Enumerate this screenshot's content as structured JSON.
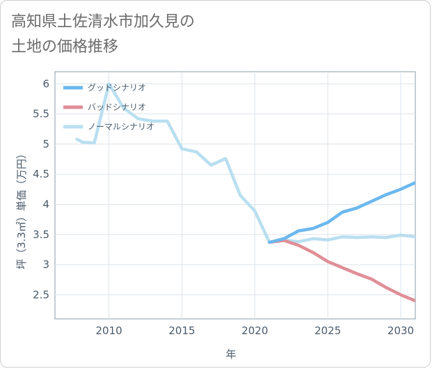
{
  "title": "高知県土佐清水市加久見の\n土地の価格推移",
  "chart_data": {
    "type": "line",
    "xlabel": "年",
    "ylabel": "坪（3.3㎡）単価（万円）",
    "xlim": [
      2006.3,
      2031
    ],
    "ylim": [
      2.1,
      6.2
    ],
    "xticks": [
      2010,
      2015,
      2020,
      2025,
      2030
    ],
    "yticks": [
      2.5,
      3,
      3.5,
      4,
      4.5,
      5,
      5.5,
      6
    ],
    "grid": true,
    "legend_position": "top-left",
    "series": [
      {
        "name": "グッドシナリオ",
        "color": "#6cb8ef",
        "x": [
          2021,
          2022,
          2023,
          2024,
          2025,
          2026,
          2027,
          2028,
          2029,
          2030,
          2031
        ],
        "y": [
          3.37,
          3.43,
          3.56,
          3.6,
          3.7,
          3.87,
          3.94,
          4.05,
          4.16,
          4.25,
          4.36
        ]
      },
      {
        "name": "バッドシナリオ",
        "color": "#e08e97",
        "x": [
          2021,
          2022,
          2023,
          2024,
          2025,
          2026,
          2027,
          2028,
          2029,
          2030,
          2031
        ],
        "y": [
          3.37,
          3.4,
          3.32,
          3.2,
          3.05,
          2.95,
          2.85,
          2.76,
          2.62,
          2.5,
          2.4
        ]
      },
      {
        "name": "ノーマルシナリオ",
        "color": "#b9dff0",
        "x": [
          2007.8,
          2008.2,
          2009,
          2010,
          2011,
          2012,
          2013,
          2014,
          2015,
          2016,
          2017,
          2018,
          2019,
          2020,
          2021,
          2022,
          2023,
          2024,
          2025,
          2026,
          2027,
          2028,
          2029,
          2030,
          2031
        ],
        "y": [
          5.08,
          5.03,
          5.02,
          6.0,
          5.6,
          5.42,
          5.38,
          5.38,
          4.92,
          4.87,
          4.65,
          4.76,
          4.15,
          3.89,
          3.37,
          3.41,
          3.38,
          3.43,
          3.41,
          3.46,
          3.45,
          3.46,
          3.45,
          3.49,
          3.46
        ]
      }
    ]
  }
}
